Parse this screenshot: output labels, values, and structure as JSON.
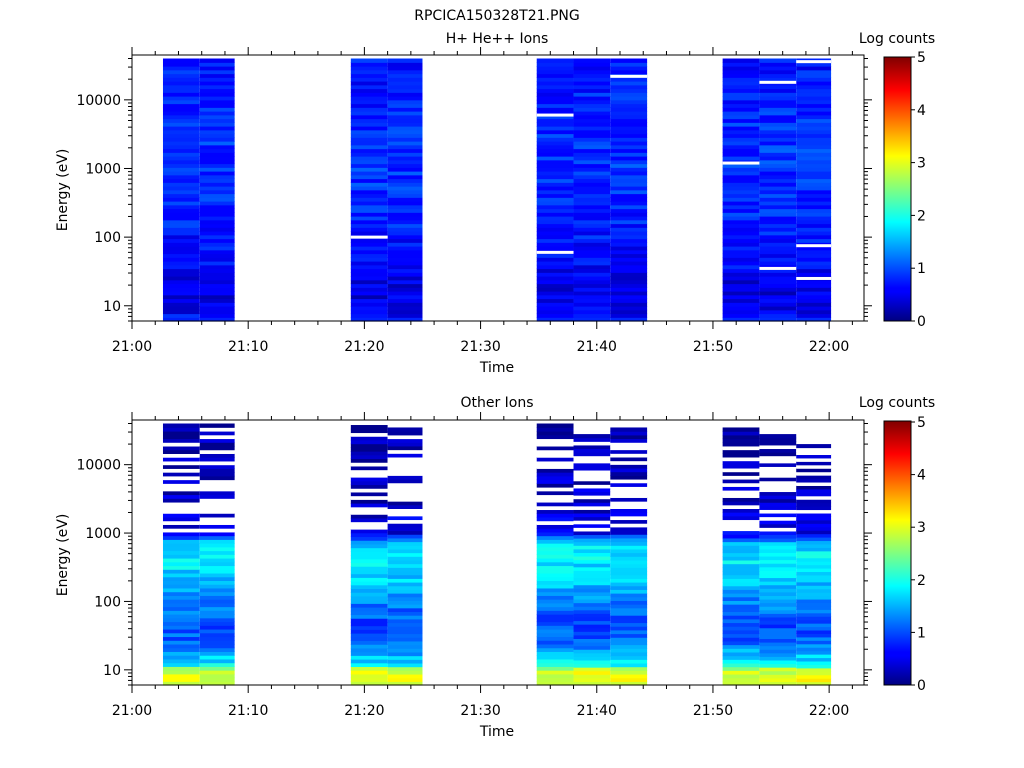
{
  "figure_title": "RPCICA150328T21.PNG",
  "chart_data": [
    {
      "type": "heatmap",
      "title": "H+ He++ Ions",
      "xlabel": "Time",
      "ylabel": "Energy (eV)",
      "yscale": "log",
      "ylim": [
        6,
        45000
      ],
      "xlim": [
        "21:00",
        "22:03"
      ],
      "x_ticks": [
        "21:00",
        "21:10",
        "21:20",
        "21:30",
        "21:40",
        "21:50",
        "22:00"
      ],
      "y_ticks": [
        "10",
        "100",
        "1000",
        "10000"
      ],
      "colorbar": {
        "label": "Log counts",
        "range": [
          0,
          5
        ],
        "ticks": [
          "0",
          "1",
          "2",
          "3",
          "4",
          "5"
        ]
      },
      "columns": [
        {
          "start": "21:02:40",
          "end": "21:05:50",
          "top_eV": 40000
        },
        {
          "start": "21:05:50",
          "end": "21:08:50",
          "top_eV": 40000
        },
        {
          "start": "21:18:50",
          "end": "21:22:00",
          "top_eV": 40000
        },
        {
          "start": "21:22:00",
          "end": "21:25:00",
          "top_eV": 40000
        },
        {
          "start": "21:34:50",
          "end": "21:38:00",
          "top_eV": 40000
        },
        {
          "start": "21:38:00",
          "end": "21:41:10",
          "top_eV": 40000
        },
        {
          "start": "21:41:10",
          "end": "21:44:20",
          "top_eV": 40000
        },
        {
          "start": "21:50:50",
          "end": "21:54:00",
          "top_eV": 40000
        },
        {
          "start": "21:54:00",
          "end": "21:57:10",
          "top_eV": 40000
        },
        {
          "start": "21:57:10",
          "end": "22:00:10",
          "top_eV": 40000
        }
      ],
      "profile": [
        [
          6,
          0.75
        ],
        [
          8,
          0.55
        ],
        [
          10,
          0.5
        ],
        [
          15,
          0.45
        ],
        [
          25,
          0.5
        ],
        [
          40,
          0.6
        ],
        [
          80,
          0.65
        ],
        [
          150,
          0.75
        ],
        [
          300,
          0.8
        ],
        [
          800,
          0.85
        ],
        [
          2000,
          0.85
        ],
        [
          5000,
          0.8
        ],
        [
          10000,
          0.75
        ],
        [
          20000,
          0.7
        ],
        [
          40000,
          0.7
        ]
      ],
      "gaps": [
        [
          2,
          100
        ],
        [
          4,
          6000
        ],
        [
          4,
          60
        ],
        [
          6,
          22000
        ],
        [
          7,
          1200
        ],
        [
          8,
          18000
        ],
        [
          8,
          35
        ],
        [
          9,
          75
        ],
        [
          9,
          25
        ],
        [
          9,
          36000
        ]
      ]
    },
    {
      "type": "heatmap",
      "title": "Other Ions",
      "xlabel": "Time",
      "ylabel": "Energy (eV)",
      "yscale": "log",
      "ylim": [
        6,
        45000
      ],
      "xlim": [
        "21:00",
        "22:03"
      ],
      "x_ticks": [
        "21:00",
        "21:10",
        "21:20",
        "21:30",
        "21:40",
        "21:50",
        "22:00"
      ],
      "y_ticks": [
        "10",
        "100",
        "1000",
        "10000"
      ],
      "colorbar": {
        "label": "Log counts",
        "range": [
          0,
          5
        ],
        "ticks": [
          "0",
          "1",
          "2",
          "3",
          "4",
          "5"
        ]
      },
      "columns": [
        {
          "start": "21:02:40",
          "end": "21:05:50",
          "top_eV": 40000
        },
        {
          "start": "21:05:50",
          "end": "21:08:50",
          "top_eV": 40000
        },
        {
          "start": "21:18:50",
          "end": "21:22:00",
          "top_eV": 38000
        },
        {
          "start": "21:22:00",
          "end": "21:25:00",
          "top_eV": 35000
        },
        {
          "start": "21:34:50",
          "end": "21:38:00",
          "top_eV": 40000
        },
        {
          "start": "21:38:00",
          "end": "21:41:10",
          "top_eV": 28000
        },
        {
          "start": "21:41:10",
          "end": "21:44:20",
          "top_eV": 35000
        },
        {
          "start": "21:50:50",
          "end": "21:54:00",
          "top_eV": 35000
        },
        {
          "start": "21:54:00",
          "end": "21:57:10",
          "top_eV": 28000
        },
        {
          "start": "21:57:10",
          "end": "22:00:10",
          "top_eV": 20000
        }
      ],
      "profile": [
        [
          6,
          3.1
        ],
        [
          10,
          2.9
        ],
        [
          12,
          1.8
        ],
        [
          16,
          1.6
        ],
        [
          25,
          1.1
        ],
        [
          50,
          1.0
        ],
        [
          100,
          1.3
        ],
        [
          200,
          1.6
        ],
        [
          400,
          1.8
        ],
        [
          700,
          1.7
        ],
        [
          1000,
          0.6
        ],
        [
          3000,
          0.35
        ],
        [
          10000,
          0.25
        ],
        [
          40000,
          0.2
        ]
      ],
      "white_above_eV": 1000
    }
  ]
}
